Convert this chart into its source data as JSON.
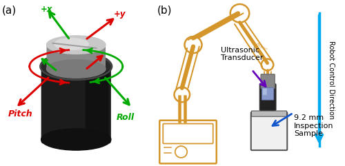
{
  "fig_width": 5.0,
  "fig_height": 2.41,
  "dpi": 100,
  "label_a": "(a)",
  "label_b": "(b)",
  "pitch_text": "Pitch",
  "roll_text": "Roll",
  "px_text": "+x",
  "py_text": "+y",
  "ultrasonic_text": "Ultrasonic\nTransducer",
  "robot_direction_text": "Robot Control Direction",
  "inspection_text": "9.2 mm\nInspection\nSample",
  "arrow_red": "#DD0000",
  "arrow_green": "#00AA00",
  "arrow_blue": "#00AAEE",
  "arrow_purple": "#6600BB",
  "arrow_dark_blue": "#1155CC",
  "robot_color": "#D4952A",
  "body_dark": "#1A1A1A",
  "body_mid": "#2E2E2E",
  "body_gray_top": "#B0B0B0",
  "body_gray_side": "#909090"
}
